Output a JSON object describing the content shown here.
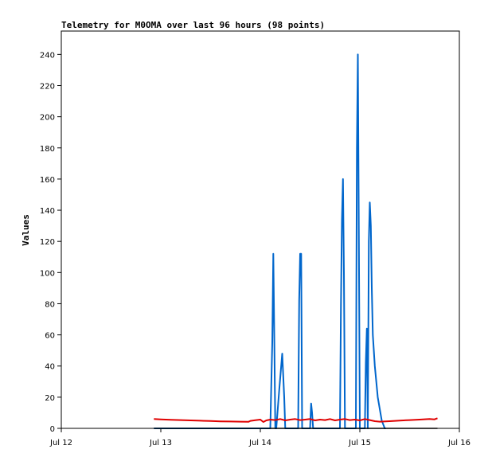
{
  "chart_data": {
    "type": "line",
    "title": "Telemetry for M0OMA over last 96 hours (98 points)",
    "xlabel": "",
    "ylabel": "Values",
    "x_ticks": [
      "Jul 12",
      "Jul 13",
      "Jul 14",
      "Jul 15",
      "Jul 16"
    ],
    "y_ticks": [
      0,
      20,
      40,
      60,
      80,
      100,
      120,
      140,
      160,
      180,
      200,
      220,
      240
    ],
    "xlim": [
      0,
      4
    ],
    "ylim": [
      0,
      255
    ],
    "grid": false,
    "colors": {
      "blue": "#0066cc",
      "red": "#e00000",
      "black": "#000000"
    },
    "series": [
      {
        "color": "#0066cc",
        "x_unit": "days since Jul 12",
        "x": [
          0.93,
          1.1,
          1.3,
          1.5,
          1.7,
          1.8,
          1.88,
          2.1,
          2.12,
          2.13,
          2.14,
          2.15,
          2.16,
          2.19,
          2.22,
          2.24,
          2.25,
          2.27,
          2.3,
          2.38,
          2.39,
          2.4,
          2.41,
          2.42,
          2.45,
          2.5,
          2.51,
          2.52,
          2.53,
          2.54,
          2.6,
          2.8,
          2.81,
          2.82,
          2.83,
          2.84,
          2.85,
          2.86,
          2.88,
          2.92,
          2.96,
          2.97,
          2.98,
          2.99,
          3.0,
          3.01,
          3.02,
          3.05,
          3.06,
          3.07,
          3.08,
          3.09,
          3.1,
          3.11,
          3.12,
          3.13,
          3.15,
          3.18,
          3.22,
          3.25,
          3.26
        ],
        "y": [
          0,
          0,
          0,
          0,
          0,
          0,
          0,
          0,
          55,
          112,
          60,
          0,
          0,
          25,
          48,
          20,
          0,
          0,
          0,
          0,
          82,
          112,
          112,
          0,
          0,
          0,
          16,
          10,
          0,
          0,
          0,
          0,
          80,
          134,
          160,
          100,
          0,
          0,
          0,
          0,
          0,
          180,
          240,
          120,
          0,
          0,
          0,
          0,
          42,
          64,
          0,
          120,
          145,
          130,
          90,
          60,
          40,
          20,
          5,
          0,
          0
        ]
      },
      {
        "color": "#e00000",
        "x_unit": "days since Jul 12",
        "x": [
          0.93,
          1.0,
          1.1,
          1.2,
          1.3,
          1.4,
          1.5,
          1.6,
          1.7,
          1.8,
          1.88,
          1.9,
          1.95,
          2.0,
          2.03,
          2.06,
          2.1,
          2.15,
          2.2,
          2.25,
          2.3,
          2.35,
          2.4,
          2.45,
          2.5,
          2.55,
          2.6,
          2.65,
          2.7,
          2.75,
          2.8,
          2.85,
          2.9,
          2.95,
          3.0,
          3.05,
          3.1,
          3.15,
          3.2,
          3.3,
          3.4,
          3.5,
          3.6,
          3.7,
          3.75,
          3.78
        ],
        "y": [
          6,
          5.8,
          5.5,
          5.3,
          5.1,
          4.9,
          4.7,
          4.5,
          4.4,
          4.3,
          4.2,
          4.8,
          5.2,
          5.6,
          4.1,
          5.1,
          5.6,
          5.3,
          6.0,
          5.1,
          5.6,
          6.0,
          5.3,
          5.6,
          6.0,
          5.1,
          5.6,
          5.3,
          6.0,
          5.1,
          5.6,
          6.0,
          5.3,
          5.6,
          5.1,
          6.0,
          5.3,
          4.6,
          4.3,
          4.6,
          5.0,
          5.3,
          5.6,
          6.0,
          5.8,
          6.5
        ]
      },
      {
        "color": "#000000",
        "x_unit": "days since Jul 12",
        "x": [
          0.93,
          3.78
        ],
        "y": [
          0,
          0
        ]
      }
    ]
  }
}
